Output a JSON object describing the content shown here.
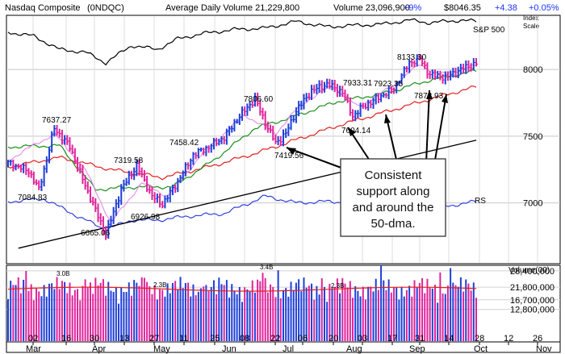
{
  "header": {
    "title": "Nasdaq Composite",
    "ticker": "(0NDQC)",
    "avg_volume": "Average Daily Volume 21,229,800",
    "volume_label": "Volume 23,096,900",
    "volume_change": "+9%",
    "price": "$8046.35",
    "price_change": "+4.38",
    "pct_change": "+0.05%",
    "index_scale_1": "Index",
    "index_scale_2": "Scale"
  },
  "colors": {
    "up": "#1f3fd8",
    "down": "#e0239a",
    "ma50": "#1a8f1a",
    "ma200": "#e02020",
    "ma10": "#e680e6",
    "sp500": "#000000",
    "rs": "#2233dd",
    "trend": "#000000",
    "accent_up": "#1a33ff",
    "accent_down": "#ff0000"
  },
  "callout": {
    "lines": [
      "Consistent",
      "support along",
      "and around the",
      "50-dma."
    ]
  },
  "overlay_labels": {
    "sp500": "S&P 500",
    "rs": "RS"
  },
  "volume_panel": {
    "label": "Volume(00)",
    "ticks": [
      "28,400,000",
      "21,800,000",
      "16,700,000",
      "12,800,000"
    ],
    "annotations": [
      "3.0B",
      "2.3B",
      "3.4B",
      "2.3B"
    ]
  },
  "chart_data": {
    "type": "candlestick",
    "title": "Nasdaq Composite",
    "price_axis": {
      "ticks": [
        7000,
        7500,
        8000
      ],
      "ylim": [
        6550,
        8400
      ]
    },
    "x_ticks": [
      "02",
      "16",
      "30",
      "13",
      "27",
      "11",
      "25",
      "08",
      "22",
      "06",
      "20",
      "03",
      "17",
      "31",
      "14",
      "28",
      "12",
      "26"
    ],
    "month_labels": [
      "Mar",
      "Apr",
      "May",
      "Jun",
      "Jul",
      "Aug",
      "Sep",
      "Oct",
      "Nov"
    ],
    "price_annotations": [
      {
        "label": "7637.27",
        "value": 7637.27
      },
      {
        "label": "7084.83",
        "value": 7084.83
      },
      {
        "label": "6665.06",
        "value": 6665.06
      },
      {
        "label": "7319.58",
        "value": 7319.58
      },
      {
        "label": "6926.98",
        "value": 6926.98
      },
      {
        "label": "7458.42",
        "value": 7458.42
      },
      {
        "label": "7806.60",
        "value": 7806.6
      },
      {
        "label": "7419.56",
        "value": 7419.56
      },
      {
        "label": "7933.31",
        "value": 7933.31
      },
      {
        "label": "7923.35",
        "value": 7923.35
      },
      {
        "label": "7604.14",
        "value": 7604.14
      },
      {
        "label": "8133.30",
        "value": 8133.3
      },
      {
        "label": "7873.93",
        "value": 7873.93
      }
    ],
    "close_anchors": [
      [
        0,
        7300
      ],
      [
        8,
        7240
      ],
      [
        12,
        7100
      ],
      [
        18,
        7560
      ],
      [
        24,
        7420
      ],
      [
        30,
        7130
      ],
      [
        38,
        6760
      ],
      [
        44,
        7100
      ],
      [
        50,
        7280
      ],
      [
        56,
        7050
      ],
      [
        60,
        6990
      ],
      [
        66,
        7160
      ],
      [
        72,
        7360
      ],
      [
        78,
        7420
      ],
      [
        84,
        7490
      ],
      [
        90,
        7650
      ],
      [
        96,
        7780
      ],
      [
        100,
        7600
      ],
      [
        104,
        7450
      ],
      [
        108,
        7520
      ],
      [
        112,
        7690
      ],
      [
        118,
        7840
      ],
      [
        124,
        7890
      ],
      [
        130,
        7830
      ],
      [
        134,
        7650
      ],
      [
        138,
        7720
      ],
      [
        144,
        7790
      ],
      [
        150,
        7860
      ],
      [
        156,
        8050
      ],
      [
        160,
        8080
      ],
      [
        164,
        7960
      ],
      [
        170,
        7940
      ],
      [
        176,
        8000
      ],
      [
        182,
        8046
      ]
    ],
    "ma50_anchors": [
      [
        0,
        7420
      ],
      [
        20,
        7430
      ],
      [
        34,
        7100
      ],
      [
        50,
        7120
      ],
      [
        64,
        7120
      ],
      [
        80,
        7320
      ],
      [
        96,
        7560
      ],
      [
        110,
        7640
      ],
      [
        128,
        7760
      ],
      [
        146,
        7820
      ],
      [
        164,
        7920
      ],
      [
        182,
        7990
      ]
    ],
    "ma200_anchors": [
      [
        0,
        7270
      ],
      [
        20,
        7340
      ],
      [
        40,
        7250
      ],
      [
        60,
        7190
      ],
      [
        80,
        7280
      ],
      [
        96,
        7370
      ],
      [
        110,
        7460
      ],
      [
        130,
        7590
      ],
      [
        150,
        7700
      ],
      [
        170,
        7810
      ],
      [
        182,
        7870
      ]
    ],
    "ma10_anchors": [
      [
        0,
        7320
      ],
      [
        18,
        7520
      ],
      [
        30,
        7250
      ],
      [
        40,
        6850
      ],
      [
        52,
        7150
      ],
      [
        62,
        7050
      ],
      [
        76,
        7380
      ],
      [
        92,
        7660
      ],
      [
        104,
        7520
      ],
      [
        114,
        7740
      ],
      [
        126,
        7880
      ],
      [
        136,
        7720
      ],
      [
        150,
        7880
      ],
      [
        160,
        8040
      ],
      [
        168,
        7960
      ],
      [
        182,
        8030
      ]
    ],
    "sp500_anchors": [
      [
        0,
        8280
      ],
      [
        10,
        8250
      ],
      [
        20,
        8150
      ],
      [
        30,
        8130
      ],
      [
        38,
        8050
      ],
      [
        48,
        8180
      ],
      [
        58,
        8150
      ],
      [
        66,
        8230
      ],
      [
        76,
        8270
      ],
      [
        88,
        8300
      ],
      [
        100,
        8310
      ],
      [
        112,
        8360
      ],
      [
        124,
        8320
      ],
      [
        134,
        8330
      ],
      [
        146,
        8340
      ],
      [
        156,
        8370
      ],
      [
        164,
        8350
      ],
      [
        176,
        8370
      ],
      [
        182,
        8360
      ]
    ],
    "rs_anchors": [
      [
        0,
        7010
      ],
      [
        14,
        7030
      ],
      [
        28,
        6890
      ],
      [
        38,
        6800
      ],
      [
        48,
        6870
      ],
      [
        58,
        6870
      ],
      [
        70,
        6900
      ],
      [
        84,
        6920
      ],
      [
        100,
        7050
      ],
      [
        112,
        7000
      ],
      [
        124,
        7010
      ],
      [
        138,
        7000
      ],
      [
        150,
        6990
      ],
      [
        160,
        6950
      ],
      [
        172,
        6980
      ],
      [
        182,
        7010
      ]
    ],
    "trend_anchors": [
      [
        4,
        6660
      ],
      [
        182,
        7470
      ]
    ],
    "volume_ylim": [
      0,
      30000000
    ]
  }
}
